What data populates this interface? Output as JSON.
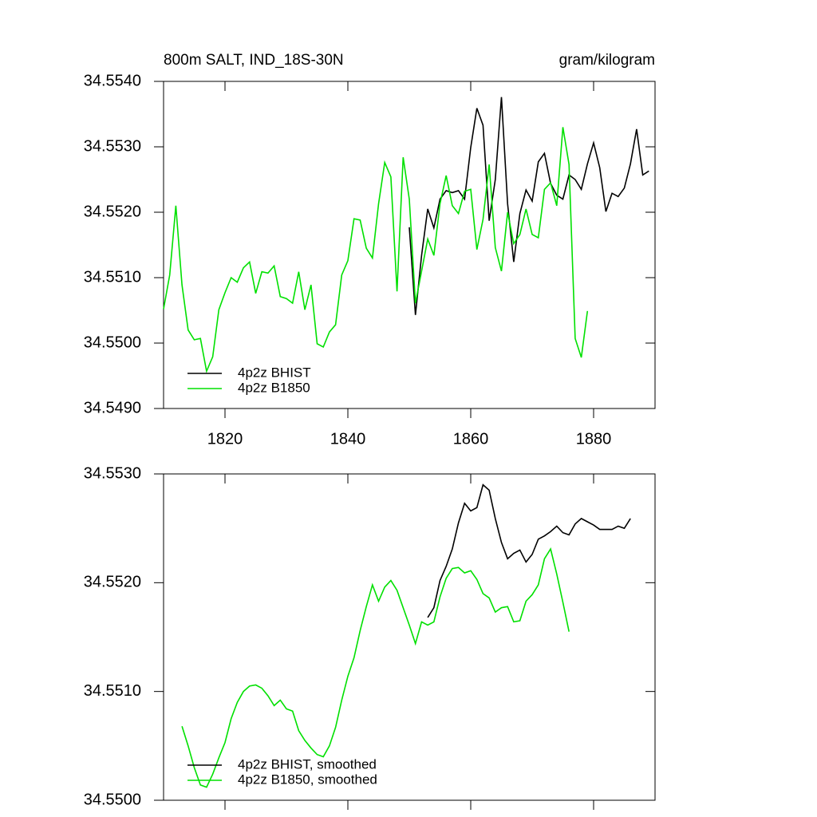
{
  "chart_data": [
    {
      "type": "line",
      "title": "800m SALT, IND_18S-30N",
      "right_title": "gram/kilogram",
      "x": [
        1810,
        1811,
        1812,
        1813,
        1814,
        1815,
        1816,
        1817,
        1818,
        1819,
        1820,
        1821,
        1822,
        1823,
        1824,
        1825,
        1826,
        1827,
        1828,
        1829,
        1830,
        1831,
        1832,
        1833,
        1834,
        1835,
        1836,
        1837,
        1838,
        1839,
        1840,
        1841,
        1842,
        1843,
        1844,
        1845,
        1846,
        1847,
        1848,
        1849,
        1850,
        1851,
        1852,
        1853,
        1854,
        1855,
        1856,
        1857,
        1858,
        1859,
        1860,
        1861,
        1862,
        1863,
        1864,
        1865,
        1866,
        1867,
        1868,
        1869,
        1870,
        1871,
        1872,
        1873,
        1874,
        1875,
        1876,
        1877,
        1878,
        1879,
        1880,
        1881,
        1882,
        1883,
        1884,
        1885,
        1886,
        1887,
        1888,
        1889
      ],
      "series": [
        {
          "name": "4p2z BHIST",
          "color": "#000000",
          "values": [
            null,
            null,
            null,
            null,
            null,
            null,
            null,
            null,
            null,
            null,
            null,
            null,
            null,
            null,
            null,
            null,
            null,
            null,
            null,
            null,
            null,
            null,
            null,
            null,
            null,
            null,
            null,
            null,
            null,
            null,
            null,
            null,
            null,
            null,
            null,
            null,
            null,
            null,
            null,
            null,
            34.55177,
            34.55043,
            34.55134,
            34.55205,
            34.55176,
            34.5522,
            34.55233,
            34.5523,
            34.55233,
            34.5522,
            34.55299,
            34.55359,
            34.55333,
            34.55187,
            34.5525,
            34.55376,
            34.55213,
            34.55124,
            34.55198,
            34.55234,
            34.55217,
            34.55277,
            34.5529,
            34.55244,
            34.55226,
            34.5522,
            34.55257,
            34.5525,
            34.55235,
            34.55274,
            34.55306,
            34.55268,
            34.55201,
            34.55229,
            34.55224,
            34.55237,
            34.55274,
            34.55327,
            34.55257,
            34.55263
          ]
        },
        {
          "name": "4p2z B1850",
          "color": "#00e000",
          "values": [
            34.55052,
            34.55104,
            34.5521,
            34.55089,
            34.5502,
            34.55005,
            34.55007,
            34.54957,
            34.54979,
            34.55051,
            34.55077,
            34.551,
            34.55093,
            34.55115,
            34.55124,
            34.55076,
            34.55109,
            34.55107,
            34.55118,
            34.55071,
            34.55068,
            34.55061,
            34.55109,
            34.55051,
            34.55089,
            34.54999,
            34.54994,
            34.55017,
            34.55028,
            34.55104,
            34.55126,
            34.5519,
            34.55188,
            34.55145,
            34.5513,
            34.55213,
            34.55276,
            34.55254,
            34.55079,
            34.55284,
            34.5522,
            34.55061,
            34.5511,
            34.55159,
            34.55134,
            34.55213,
            34.55256,
            34.5521,
            34.55198,
            34.55232,
            34.55235,
            34.55143,
            34.55189,
            34.55273,
            34.55146,
            34.5511,
            34.552,
            34.55152,
            34.55166,
            34.55205,
            34.55166,
            34.55161,
            34.55235,
            34.55245,
            34.5521,
            34.5533,
            34.55273,
            34.55007,
            34.54978,
            34.55049,
            null,
            null,
            null,
            null,
            null,
            null,
            null,
            null,
            null,
            null
          ]
        }
      ],
      "xlim": [
        1810,
        1890
      ],
      "xticks": [
        1820,
        1840,
        1860,
        1880
      ],
      "show_xtick_labels": true,
      "ylim": [
        34.549,
        34.554
      ],
      "yticks": [
        {
          "value": 34.549,
          "label": "34.5490"
        },
        {
          "value": 34.55,
          "label": "34.5500"
        },
        {
          "value": 34.551,
          "label": "34.5510"
        },
        {
          "value": 34.552,
          "label": "34.5520"
        },
        {
          "value": 34.553,
          "label": "34.5530"
        },
        {
          "value": 34.554,
          "label": "34.5540"
        }
      ],
      "legend": "lower left"
    },
    {
      "type": "line",
      "x": [
        1813,
        1814,
        1815,
        1816,
        1817,
        1818,
        1819,
        1820,
        1821,
        1822,
        1823,
        1824,
        1825,
        1826,
        1827,
        1828,
        1829,
        1830,
        1831,
        1832,
        1833,
        1834,
        1835,
        1836,
        1837,
        1838,
        1839,
        1840,
        1841,
        1842,
        1843,
        1844,
        1845,
        1846,
        1847,
        1848,
        1849,
        1850,
        1851,
        1852,
        1853,
        1854,
        1855,
        1856,
        1857,
        1858,
        1859,
        1860,
        1861,
        1862,
        1863,
        1864,
        1865,
        1866,
        1867,
        1868,
        1869,
        1870,
        1871,
        1872,
        1873,
        1874,
        1875,
        1876,
        1877,
        1878,
        1879,
        1880,
        1881,
        1882,
        1883,
        1884,
        1885,
        1886
      ],
      "series": [
        {
          "name": "4p2z BHIST, smoothed",
          "color": "#000000",
          "values": [
            null,
            null,
            null,
            null,
            null,
            null,
            null,
            null,
            null,
            null,
            null,
            null,
            null,
            null,
            null,
            null,
            null,
            null,
            null,
            null,
            null,
            null,
            null,
            null,
            null,
            null,
            null,
            null,
            null,
            null,
            null,
            null,
            null,
            null,
            null,
            null,
            null,
            null,
            null,
            null,
            34.55168,
            34.55177,
            34.55202,
            34.55215,
            34.55231,
            34.55255,
            34.55273,
            34.55266,
            34.55269,
            34.5529,
            34.55285,
            34.55259,
            34.55237,
            34.55222,
            34.55227,
            34.5523,
            34.55219,
            34.55226,
            34.5524,
            34.55243,
            34.55247,
            34.55252,
            34.55246,
            34.55244,
            34.55254,
            34.55259,
            34.55256,
            34.55253,
            34.55249,
            34.55249,
            34.55249,
            34.55252,
            34.5525,
            34.55259
          ]
        },
        {
          "name": "4p2z B1850, smoothed",
          "color": "#00e000",
          "values": [
            34.55068,
            34.5505,
            34.5503,
            34.55014,
            34.55012,
            34.55024,
            34.55039,
            34.55053,
            34.55075,
            34.5509,
            34.551,
            34.55105,
            34.55106,
            34.55103,
            34.55096,
            34.55087,
            34.55092,
            34.55084,
            34.55082,
            34.55064,
            34.55055,
            34.55048,
            34.55042,
            34.5504,
            34.5505,
            34.55067,
            34.55092,
            34.55114,
            34.55131,
            34.55156,
            34.55178,
            34.55198,
            34.55183,
            34.55196,
            34.55202,
            34.55193,
            34.55177,
            34.55161,
            34.55144,
            34.55164,
            34.55161,
            34.55164,
            34.55187,
            34.55204,
            34.55213,
            34.55214,
            34.55209,
            34.55211,
            34.55203,
            34.5519,
            34.55186,
            34.55173,
            34.55177,
            34.55178,
            34.55164,
            34.55165,
            34.55183,
            34.55189,
            34.55198,
            34.55222,
            34.55231,
            34.55208,
            34.55182,
            34.55155,
            null,
            null,
            null,
            null,
            null,
            null,
            null,
            null,
            null,
            null
          ]
        }
      ],
      "xlim": [
        1810,
        1890
      ],
      "xticks": [
        1820,
        1840,
        1860,
        1880
      ],
      "show_xtick_labels": false,
      "ylim": [
        34.55,
        34.553
      ],
      "yticks": [
        {
          "value": 34.55,
          "label": "34.5500"
        },
        {
          "value": 34.551,
          "label": "34.5510"
        },
        {
          "value": 34.552,
          "label": "34.5520"
        },
        {
          "value": 34.553,
          "label": "34.5530"
        }
      ],
      "legend": "lower left"
    }
  ]
}
